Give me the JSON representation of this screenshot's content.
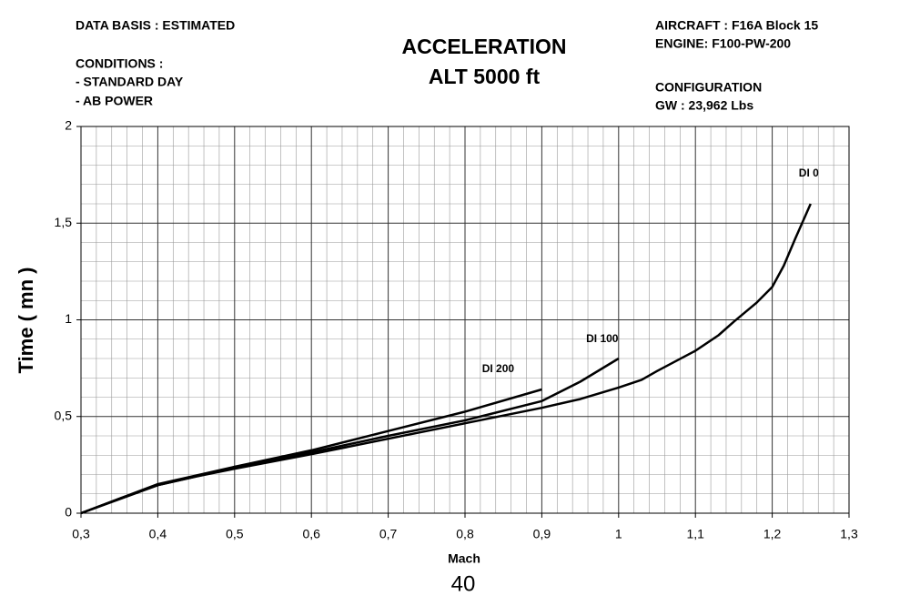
{
  "notes_left": [
    "DATA BASIS : ESTIMATED",
    "CONDITIONS :",
    "- STANDARD DAY",
    "- AB POWER"
  ],
  "notes_right": [
    "AIRCRAFT : F16A Block 15",
    "ENGINE: F100-PW-200",
    "CONFIGURATION",
    "GW : 23,962 Lbs"
  ],
  "page_number": "40",
  "chart_data": {
    "type": "line",
    "title": "ACCELERATION",
    "subtitle": "ALT 5000 ft",
    "xlabel": "Mach",
    "ylabel": "Time ( mn )",
    "xlim": [
      0.3,
      1.3
    ],
    "ylim": [
      0,
      2
    ],
    "xticks": [
      {
        "value": 0.3,
        "label": "0,3"
      },
      {
        "value": 0.4,
        "label": "0,4"
      },
      {
        "value": 0.5,
        "label": "0,5"
      },
      {
        "value": 0.6,
        "label": "0,6"
      },
      {
        "value": 0.7,
        "label": "0,7"
      },
      {
        "value": 0.8,
        "label": "0,8"
      },
      {
        "value": 0.9,
        "label": "0,9"
      },
      1,
      {
        "value": 1.1,
        "label": "1,1"
      },
      {
        "value": 1.2,
        "label": "1,2"
      },
      {
        "value": 1.3,
        "label": "1,3"
      }
    ],
    "yticks": [
      0,
      {
        "value": 0.5,
        "label": "0,5"
      },
      1,
      {
        "value": 1.5,
        "label": "1,5"
      },
      2
    ],
    "grid": true,
    "minor_grid_divisions": 5,
    "series": [
      {
        "name": "DI 0",
        "color": "#000000",
        "x": [
          0.3,
          0.35,
          0.4,
          0.45,
          0.5,
          0.6,
          0.7,
          0.8,
          0.9,
          0.95,
          1.0,
          1.03,
          1.05,
          1.1,
          1.13,
          1.15,
          1.18,
          1.2,
          1.215,
          1.23,
          1.25
        ],
        "values": [
          0,
          0.075,
          0.145,
          0.19,
          0.23,
          0.305,
          0.385,
          0.465,
          0.545,
          0.59,
          0.65,
          0.69,
          0.735,
          0.84,
          0.92,
          0.99,
          1.09,
          1.17,
          1.28,
          1.42,
          1.6
        ]
      },
      {
        "name": "DI 100",
        "color": "#000000",
        "x": [
          0.3,
          0.4,
          0.5,
          0.6,
          0.7,
          0.8,
          0.9,
          0.95,
          1.0
        ],
        "values": [
          0,
          0.145,
          0.235,
          0.315,
          0.4,
          0.48,
          0.58,
          0.68,
          0.8
        ]
      },
      {
        "name": "DI 200",
        "color": "#000000",
        "x": [
          0.3,
          0.4,
          0.5,
          0.6,
          0.7,
          0.8,
          0.9
        ],
        "values": [
          0,
          0.15,
          0.24,
          0.325,
          0.425,
          0.525,
          0.64
        ]
      }
    ]
  }
}
